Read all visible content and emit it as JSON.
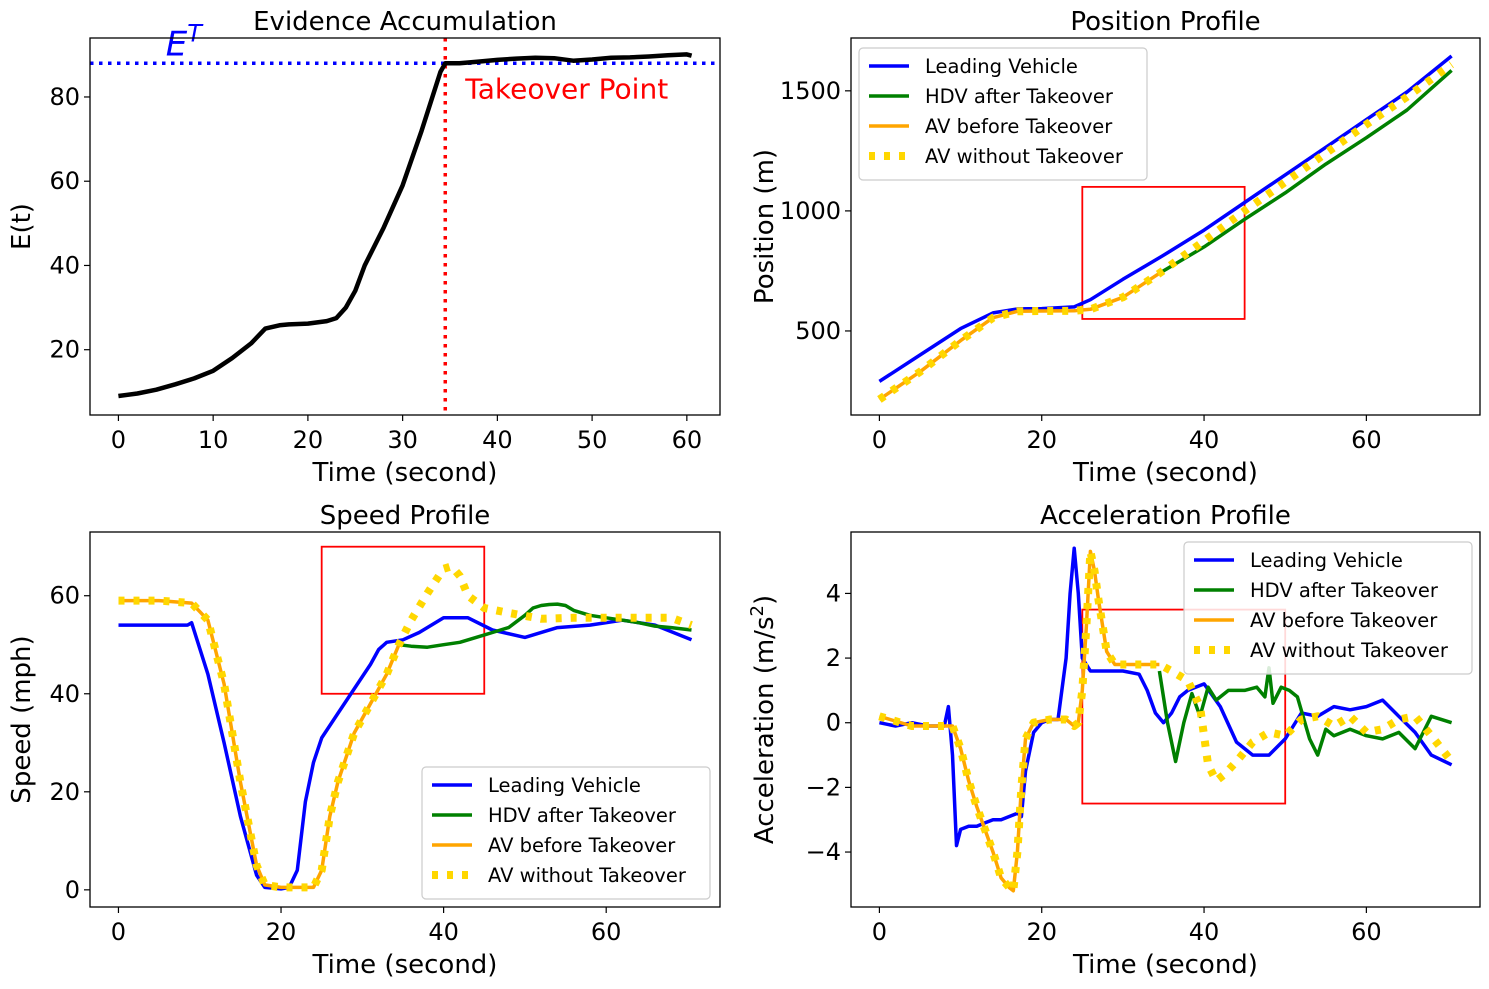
{
  "chart_data": [
    {
      "type": "line",
      "title": "Evidence Accumulation",
      "xlabel": "Time (second)",
      "ylabel": "E(t)",
      "xlim": [
        -3,
        63.5
      ],
      "ylim": [
        4.5,
        94
      ],
      "xticks": [
        0,
        10,
        20,
        30,
        40,
        50,
        60
      ],
      "yticks": [
        20,
        40,
        60,
        80
      ],
      "grid": false,
      "threshold": {
        "value": 88,
        "label": "E^T",
        "label_base": "E",
        "label_sup": "T",
        "color": "#0000ff"
      },
      "takeover": {
        "time": 34.5,
        "label": "Takeover Point",
        "color": "#ff0000"
      },
      "series": [
        {
          "color": "#000000",
          "x": [
            0,
            2,
            4,
            6,
            8,
            10,
            12,
            14,
            15.5,
            17,
            18,
            20,
            22,
            23,
            24,
            25,
            26,
            28,
            30,
            32,
            34,
            34.5,
            36,
            38,
            40,
            42,
            44,
            46,
            48,
            50,
            52,
            54,
            56,
            58,
            60,
            60.5
          ],
          "y": [
            9,
            9.6,
            10.5,
            11.8,
            13.2,
            15,
            18,
            21.5,
            25,
            25.8,
            26,
            26.2,
            26.8,
            27.5,
            30,
            34,
            40,
            49,
            59,
            72,
            86,
            88,
            88,
            88.4,
            88.8,
            89.1,
            89.3,
            89.2,
            88.6,
            88.9,
            89.3,
            89.4,
            89.6,
            89.9,
            90.1,
            89.8
          ]
        }
      ]
    },
    {
      "type": "line",
      "title": "Position Profile",
      "xlabel": "Time (second)",
      "ylabel": "Position (m)",
      "xlim": [
        -3.5,
        74
      ],
      "ylim": [
        150,
        1720
      ],
      "xticks": [
        0,
        20,
        40,
        60
      ],
      "yticks": [
        500,
        1000,
        1500
      ],
      "grid": false,
      "legend_position": "top-left",
      "highlight_box": {
        "x": [
          25,
          45
        ],
        "y": [
          550,
          1100
        ]
      },
      "series": [
        {
          "name": "Leading Vehicle",
          "color": "#0000ff",
          "style": "solid",
          "x": [
            0,
            5,
            10,
            14,
            17,
            20,
            24,
            26,
            30,
            35,
            40,
            45,
            50,
            55,
            60,
            65,
            70.5
          ],
          "y": [
            290,
            400,
            510,
            575,
            592,
            593,
            600,
            630,
            715,
            815,
            920,
            1035,
            1150,
            1265,
            1380,
            1495,
            1645
          ]
        },
        {
          "name": "HDV after Takeover",
          "color": "#008000",
          "style": "solid",
          "x": [
            34.5,
            40,
            45,
            50,
            55,
            60,
            65,
            70.5
          ],
          "y": [
            740,
            850,
            965,
            1075,
            1195,
            1305,
            1420,
            1585
          ]
        },
        {
          "name": "AV before Takeover",
          "color": "#ffa500",
          "style": "solid",
          "x": [
            0,
            5,
            10,
            14,
            17,
            20,
            24,
            26,
            30,
            34.5
          ],
          "y": [
            215,
            330,
            460,
            555,
            582,
            583,
            584,
            590,
            640,
            740
          ]
        },
        {
          "name": "AV without Takeover",
          "color": "#ffd700",
          "style": "dotted",
          "x": [
            0,
            5,
            10,
            14,
            17,
            20,
            24,
            26,
            30,
            34.5,
            40,
            45,
            50,
            55,
            60,
            65,
            70.5
          ],
          "y": [
            215,
            330,
            460,
            555,
            582,
            583,
            584,
            590,
            640,
            740,
            875,
            1000,
            1120,
            1240,
            1360,
            1475,
            1610
          ]
        }
      ]
    },
    {
      "type": "line",
      "title": "Speed Profile",
      "xlabel": "Time (second)",
      "ylabel": "Speed (mph)",
      "xlim": [
        -3.5,
        74
      ],
      "ylim": [
        -3.5,
        73
      ],
      "xticks": [
        0,
        20,
        40,
        60
      ],
      "yticks": [
        0,
        20,
        40,
        60
      ],
      "grid": false,
      "legend_position": "bottom-right",
      "highlight_box": {
        "x": [
          25,
          45
        ],
        "y": [
          40,
          70
        ]
      },
      "series": [
        {
          "name": "Leading Vehicle",
          "color": "#0000ff",
          "style": "solid",
          "x": [
            0,
            8.5,
            9,
            11,
            13,
            15,
            17,
            18,
            20,
            21,
            22,
            23,
            24,
            25,
            27,
            29,
            31,
            32,
            33,
            35,
            37,
            40,
            43,
            46,
            50,
            54,
            58,
            62,
            66,
            70.5
          ],
          "y": [
            54,
            54,
            54.5,
            44,
            30,
            15,
            3,
            0.5,
            0.2,
            0.5,
            4,
            18,
            26,
            31,
            36,
            41,
            46,
            49,
            50.5,
            51,
            52.5,
            55.5,
            55.5,
            53,
            51.5,
            53.5,
            54,
            55,
            54,
            51
          ]
        },
        {
          "name": "HDV after Takeover",
          "color": "#008000",
          "style": "solid",
          "x": [
            34.5,
            36,
            38,
            40,
            42,
            44,
            46,
            48,
            50,
            51,
            52,
            53,
            54,
            55,
            56,
            58,
            60,
            62,
            64,
            66,
            68,
            70.5
          ],
          "y": [
            50,
            49.7,
            49.5,
            50,
            50.5,
            51.5,
            52.5,
            53.5,
            56,
            57.5,
            58,
            58.2,
            58.3,
            58,
            57,
            56,
            55.5,
            55,
            54.5,
            53.8,
            53.5,
            53
          ]
        },
        {
          "name": "AV before Takeover",
          "color": "#ffa500",
          "style": "solid",
          "x": [
            0,
            5,
            9,
            11,
            13,
            15,
            17,
            18,
            20,
            22,
            24,
            25,
            26,
            27,
            29,
            31,
            33,
            34.5
          ],
          "y": [
            59,
            59,
            58.5,
            55,
            42,
            22,
            5,
            1,
            0.5,
            0.5,
            0.5,
            4,
            15,
            22,
            32,
            38,
            44,
            50
          ]
        },
        {
          "name": "AV without Takeover",
          "color": "#ffd700",
          "style": "dotted",
          "x": [
            0,
            5,
            9,
            11,
            13,
            15,
            17,
            18,
            20,
            22,
            24,
            25,
            26,
            27,
            29,
            31,
            33,
            34.5,
            36,
            38,
            40,
            41,
            42,
            43,
            45,
            48,
            52,
            56,
            60,
            64,
            68,
            70.5
          ],
          "y": [
            59,
            59,
            58.5,
            55,
            42,
            22,
            5,
            1,
            0.5,
            0.5,
            0.5,
            4,
            15,
            22,
            32,
            38,
            44,
            50,
            55,
            60.5,
            65.5,
            66,
            64,
            60,
            57.5,
            56.5,
            55.3,
            55.5,
            55.5,
            55.5,
            55.5,
            54
          ]
        }
      ]
    },
    {
      "type": "line",
      "title": "Acceleration Profile",
      "xlabel": "Time (second)",
      "ylabel": "Acceleration (m/s^2)",
      "ylabel_base": "Acceleration (m/s",
      "ylabel_sup": "2",
      "ylabel_end": ")",
      "xlim": [
        -3.5,
        74
      ],
      "ylim": [
        -5.7,
        5.9
      ],
      "xticks": [
        0,
        20,
        40,
        60
      ],
      "yticks": [
        -4,
        -2,
        0,
        2,
        4
      ],
      "grid": false,
      "legend_position": "top-right",
      "highlight_box": {
        "x": [
          25,
          50
        ],
        "y": [
          -2.5,
          3.5
        ]
      },
      "series": [
        {
          "name": "Leading Vehicle",
          "color": "#0000ff",
          "style": "solid",
          "x": [
            0,
            2,
            4,
            6,
            8,
            8.5,
            9,
            9.5,
            10,
            11,
            12,
            13,
            14,
            15,
            16,
            17,
            17.5,
            18,
            19,
            20,
            21,
            22,
            23,
            23.5,
            24,
            24.5,
            25,
            26,
            27,
            30,
            32,
            33,
            34,
            35,
            36,
            37,
            38,
            40,
            42,
            44,
            46,
            48,
            50,
            52,
            54,
            56,
            58,
            60,
            62,
            64,
            66,
            68,
            70.5
          ],
          "y": [
            0,
            -0.1,
            0,
            -0.1,
            -0.1,
            0.5,
            -1,
            -3.8,
            -3.3,
            -3.2,
            -3.2,
            -3.1,
            -3.0,
            -3.0,
            -2.9,
            -2.8,
            -2.9,
            -1.5,
            -0.3,
            0,
            0.1,
            0.1,
            2,
            4,
            5.4,
            4,
            2,
            1.6,
            1.6,
            1.6,
            1.5,
            1.0,
            0.3,
            0,
            0.3,
            0.8,
            1.0,
            1.2,
            0.5,
            -0.6,
            -1.0,
            -1.0,
            -0.5,
            0.3,
            0.2,
            0.5,
            0.4,
            0.5,
            0.7,
            0.2,
            -0.3,
            -1.0,
            -1.3
          ]
        },
        {
          "name": "HDV after Takeover",
          "color": "#008000",
          "style": "solid",
          "x": [
            34.5,
            35.5,
            36.5,
            37.5,
            38.5,
            39.5,
            40.5,
            41.5,
            43,
            45,
            46.5,
            47.5,
            48,
            48.5,
            49.5,
            50.5,
            51.5,
            53,
            54,
            55,
            56,
            58,
            60,
            62,
            64,
            66,
            68,
            70.5
          ],
          "y": [
            1.6,
            0,
            -1.2,
            0,
            0.9,
            0.2,
            1.1,
            0.7,
            1.0,
            1.0,
            1.1,
            0.8,
            1.7,
            0.6,
            1.1,
            1.0,
            0.8,
            -0.5,
            -1.0,
            -0.2,
            -0.4,
            -0.2,
            -0.4,
            -0.5,
            -0.3,
            -0.8,
            0.2,
            0
          ]
        },
        {
          "name": "AV before Takeover",
          "color": "#ffa500",
          "style": "solid",
          "x": [
            0,
            4,
            8,
            9,
            10,
            11,
            12,
            13,
            14,
            15,
            16,
            16.5,
            17,
            17.5,
            18,
            19,
            21,
            23,
            24,
            24.5,
            25,
            25.5,
            26,
            26.5,
            27,
            28,
            29,
            31,
            33,
            34.5
          ],
          "y": [
            0.2,
            -0.1,
            -0.1,
            -0.1,
            -0.8,
            -1.8,
            -2.6,
            -3.3,
            -4.0,
            -4.8,
            -5.1,
            -5.2,
            -4.0,
            -2.0,
            -0.5,
            0,
            0.1,
            0.1,
            -0.1,
            0,
            1,
            3,
            5.3,
            4.7,
            3.8,
            2.2,
            1.8,
            1.8,
            1.8,
            1.8
          ]
        },
        {
          "name": "AV without Takeover",
          "color": "#ffd700",
          "style": "dotted",
          "x": [
            0,
            4,
            8,
            9,
            10,
            11,
            12,
            13,
            14,
            15,
            16,
            16.5,
            17,
            17.5,
            18,
            19,
            21,
            23,
            24,
            24.5,
            25,
            25.5,
            26,
            26.5,
            27,
            28,
            29,
            31,
            33,
            34.5,
            36,
            38,
            39.5,
            40.5,
            41.5,
            42.5,
            44,
            46,
            48,
            50,
            52,
            54,
            56,
            58,
            60,
            62,
            64,
            66,
            68,
            70.5
          ],
          "y": [
            0.2,
            -0.1,
            -0.1,
            -0.1,
            -0.8,
            -1.8,
            -2.6,
            -3.3,
            -4.0,
            -4.8,
            -5.1,
            -5.2,
            -4.0,
            -2.0,
            -0.5,
            0,
            0.1,
            0.1,
            -0.1,
            0,
            1,
            3,
            5.3,
            4.7,
            3.8,
            2.2,
            1.8,
            1.8,
            1.8,
            1.8,
            1.6,
            1.3,
            0.5,
            -1.3,
            -1.8,
            -1.6,
            -1.2,
            -0.6,
            -0.3,
            -0.4,
            0.1,
            0.2,
            -0.1,
            0.2,
            -0.3,
            -0.2,
            0.1,
            0.2,
            -0.4,
            -1.2
          ]
        }
      ]
    }
  ]
}
